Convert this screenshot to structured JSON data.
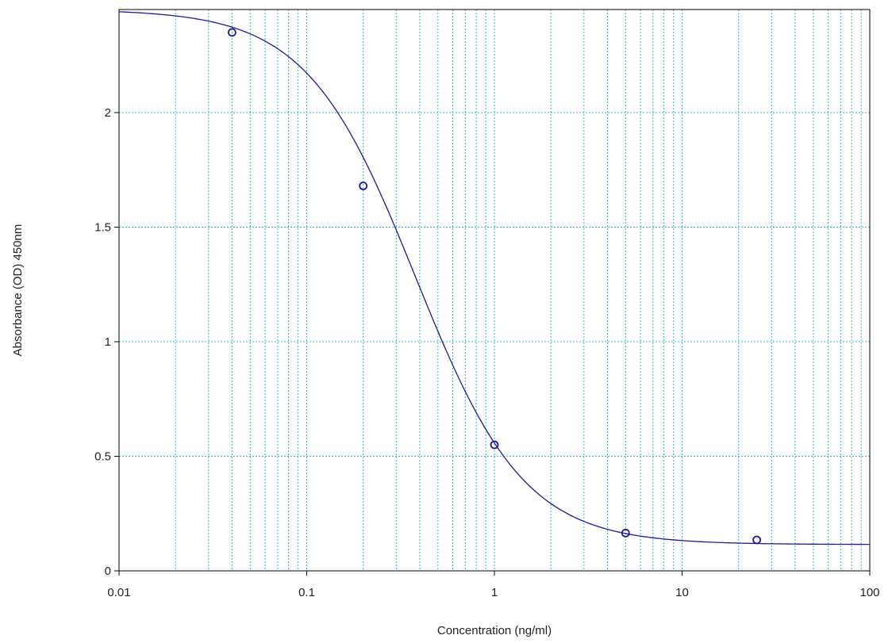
{
  "chart_data": {
    "type": "scatter",
    "title": "",
    "xlabel": "Concentration (ng/ml)",
    "ylabel": "Absorbance (OD) 450nm",
    "x_scale": "log",
    "xlim": [
      0.01,
      100
    ],
    "ylim": [
      0,
      2.45
    ],
    "x_ticks": [
      {
        "value": 0.01,
        "label": "0.01"
      },
      {
        "value": 0.1,
        "label": "0.1"
      },
      {
        "value": 1,
        "label": "1"
      },
      {
        "value": 10,
        "label": "10"
      },
      {
        "value": 100,
        "label": "100"
      }
    ],
    "y_ticks": [
      {
        "value": 0,
        "label": "0"
      },
      {
        "value": 0.5,
        "label": "0.5"
      },
      {
        "value": 1,
        "label": "1"
      },
      {
        "value": 1.5,
        "label": "1.5"
      },
      {
        "value": 2,
        "label": "2"
      }
    ],
    "grid": true,
    "legend": "none",
    "series": [
      {
        "x": [
          0.04,
          0.2,
          1,
          5,
          25
        ],
        "y": [
          2.35,
          1.68,
          0.55,
          0.165,
          0.135
        ],
        "marker": "circle"
      }
    ],
    "fit_curve": {
      "model": "4PL",
      "top": 2.45,
      "bottom": 0.115,
      "ec50": 0.38,
      "hill": 1.5
    },
    "colors": {
      "grid": "#33b5d8",
      "curve": "#1a1a99",
      "marker": "#1a1a99",
      "axis": "#000000"
    }
  }
}
